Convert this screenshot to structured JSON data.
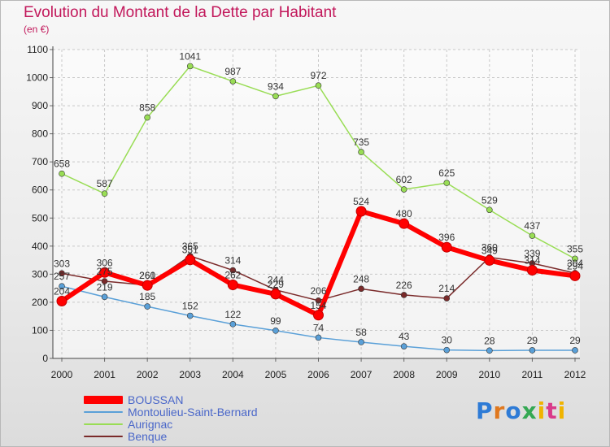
{
  "title": "Evolution du Montant de la Dette par Habitant",
  "unit": "(en €)",
  "logo": "Proxiti",
  "chart_data": {
    "type": "line",
    "x": [
      "2000",
      "2001",
      "2002",
      "2003",
      "2004",
      "2005",
      "2006",
      "2007",
      "2008",
      "2009",
      "2010",
      "2011",
      "2012"
    ],
    "ylim": [
      0,
      1100
    ],
    "yticks": [
      0,
      100,
      200,
      300,
      400,
      500,
      600,
      700,
      800,
      900,
      1000,
      1100
    ],
    "grid": true,
    "legend_position": "bottom-left",
    "series": [
      {
        "name": "BOUSSAN",
        "color": "#ff0000",
        "width": 6,
        "values": [
          204,
          306,
          260,
          351,
          262,
          229,
          154,
          524,
          480,
          396,
          349,
          314,
          294
        ],
        "labeled": true
      },
      {
        "name": "Montoulieu-Saint-Bernard",
        "color": "#5aa0d8",
        "width": 1.5,
        "values": [
          257,
          219,
          185,
          152,
          122,
          99,
          74,
          58,
          43,
          30,
          28,
          29,
          29
        ],
        "labeled": true
      },
      {
        "name": "Aurignac",
        "color": "#99dd55",
        "width": 1.5,
        "values": [
          658,
          587,
          858,
          1041,
          987,
          934,
          972,
          735,
          602,
          625,
          529,
          437,
          355
        ],
        "labeled": true
      },
      {
        "name": "Benque",
        "color": "#7a2a2a",
        "width": 1.5,
        "values": [
          303,
          275,
          261,
          365,
          314,
          244,
          206,
          248,
          226,
          214,
          360,
          339,
          304
        ],
        "labeled": true
      }
    ]
  }
}
